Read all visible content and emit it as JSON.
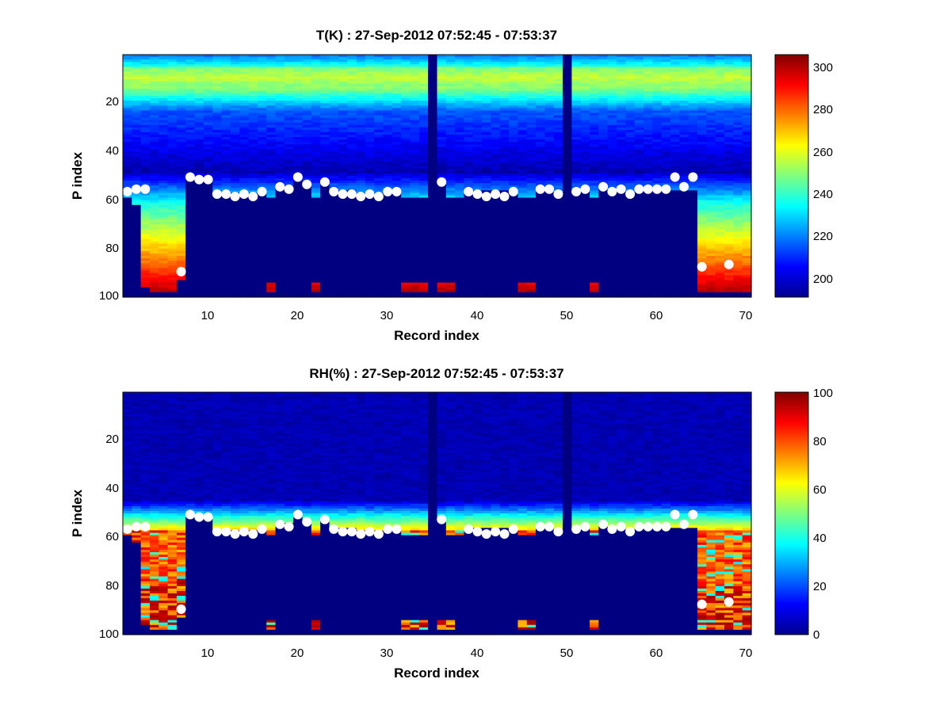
{
  "figure": {
    "background": "#ffffff"
  },
  "chart_data": [
    {
      "type": "heatmap",
      "title": "T(K) : 27-Sep-2012 07:52:45 - 07:53:37",
      "xlabel": "Record index",
      "ylabel": "P index",
      "xlim": [
        1,
        70
      ],
      "ylim": [
        1,
        100
      ],
      "y_reversed": true,
      "xticks": [
        "10",
        "20",
        "30",
        "40",
        "50",
        "60",
        "70"
      ],
      "yticks": [
        "20",
        "40",
        "60",
        "80",
        "100"
      ],
      "colorbar": {
        "min": 190,
        "max": 305,
        "ticks": [
          "200",
          "220",
          "240",
          "260",
          "280",
          "300"
        ],
        "colormap": "jet"
      },
      "profile_bottom": [
        80,
        62,
        96,
        98,
        98,
        98,
        93,
        100,
        100,
        100,
        100,
        100,
        100,
        100,
        100,
        100,
        98,
        100,
        100,
        100,
        100,
        98,
        100,
        100,
        100,
        100,
        100,
        100,
        100,
        100,
        82,
        98,
        98,
        98,
        100,
        98,
        98,
        100,
        100,
        100,
        100,
        100,
        100,
        100,
        98,
        98,
        100,
        100,
        100,
        100,
        100,
        100,
        98,
        100,
        100,
        100,
        100,
        100,
        100,
        100,
        100,
        100,
        100,
        100,
        98,
        98,
        98,
        98,
        98,
        98
      ],
      "cutoff_start": [
        60,
        100,
        100,
        100,
        100,
        100,
        100,
        52,
        52,
        52,
        58,
        58,
        58,
        58,
        58,
        58,
        60,
        55,
        55,
        52,
        55,
        60,
        53,
        57,
        57,
        57,
        58,
        58,
        58,
        58,
        58,
        60,
        60,
        60,
        100,
        53,
        60,
        60,
        57,
        57,
        57,
        57,
        57,
        57,
        60,
        60,
        56,
        56,
        58,
        58,
        57,
        57,
        60,
        55,
        57,
        57,
        58,
        57,
        57,
        57,
        57,
        57,
        57,
        57,
        100,
        100,
        100,
        100,
        100,
        100
      ],
      "fill_end": [
        100,
        100,
        100,
        100,
        100,
        100,
        100,
        100,
        100,
        100,
        100,
        100,
        100,
        100,
        100,
        100,
        94,
        100,
        100,
        100,
        100,
        94,
        100,
        100,
        100,
        100,
        100,
        100,
        100,
        100,
        100,
        94,
        94,
        94,
        100,
        94,
        94,
        100,
        100,
        100,
        100,
        100,
        100,
        100,
        94,
        94,
        100,
        100,
        100,
        100,
        100,
        100,
        94,
        100,
        100,
        100,
        100,
        100,
        100,
        100,
        100,
        100,
        100,
        100,
        94,
        94,
        94,
        94,
        94,
        94
      ],
      "missing_columns": [
        35,
        50
      ],
      "markers": [
        {
          "x": 1,
          "y": 57
        },
        {
          "x": 2,
          "y": 56
        },
        {
          "x": 3,
          "y": 56
        },
        {
          "x": 7,
          "y": 90
        },
        {
          "x": 8,
          "y": 51
        },
        {
          "x": 9,
          "y": 52
        },
        {
          "x": 10,
          "y": 52
        },
        {
          "x": 11,
          "y": 58
        },
        {
          "x": 12,
          "y": 58
        },
        {
          "x": 13,
          "y": 59
        },
        {
          "x": 14,
          "y": 58
        },
        {
          "x": 15,
          "y": 59
        },
        {
          "x": 16,
          "y": 57
        },
        {
          "x": 18,
          "y": 55
        },
        {
          "x": 19,
          "y": 56
        },
        {
          "x": 20,
          "y": 51
        },
        {
          "x": 21,
          "y": 54
        },
        {
          "x": 23,
          "y": 53
        },
        {
          "x": 24,
          "y": 57
        },
        {
          "x": 25,
          "y": 58
        },
        {
          "x": 26,
          "y": 58
        },
        {
          "x": 27,
          "y": 59
        },
        {
          "x": 28,
          "y": 58
        },
        {
          "x": 29,
          "y": 59
        },
        {
          "x": 30,
          "y": 57
        },
        {
          "x": 31,
          "y": 57
        },
        {
          "x": 36,
          "y": 53
        },
        {
          "x": 39,
          "y": 57
        },
        {
          "x": 40,
          "y": 58
        },
        {
          "x": 41,
          "y": 59
        },
        {
          "x": 42,
          "y": 58
        },
        {
          "x": 43,
          "y": 59
        },
        {
          "x": 44,
          "y": 57
        },
        {
          "x": 47,
          "y": 56
        },
        {
          "x": 48,
          "y": 56
        },
        {
          "x": 49,
          "y": 58
        },
        {
          "x": 51,
          "y": 57
        },
        {
          "x": 52,
          "y": 56
        },
        {
          "x": 54,
          "y": 55
        },
        {
          "x": 55,
          "y": 57
        },
        {
          "x": 56,
          "y": 56
        },
        {
          "x": 57,
          "y": 58
        },
        {
          "x": 58,
          "y": 56
        },
        {
          "x": 59,
          "y": 56
        },
        {
          "x": 60,
          "y": 56
        },
        {
          "x": 61,
          "y": 56
        },
        {
          "x": 62,
          "y": 51
        },
        {
          "x": 63,
          "y": 55
        },
        {
          "x": 64,
          "y": 51
        },
        {
          "x": 65,
          "y": 88
        },
        {
          "x": 68,
          "y": 87
        }
      ]
    },
    {
      "type": "heatmap",
      "title": "RH(%) : 27-Sep-2012 07:52:45 - 07:53:37",
      "xlabel": "Record index",
      "ylabel": "P index",
      "xlim": [
        1,
        70
      ],
      "ylim": [
        1,
        100
      ],
      "y_reversed": true,
      "xticks": [
        "10",
        "20",
        "30",
        "40",
        "50",
        "60",
        "70"
      ],
      "yticks": [
        "20",
        "40",
        "60",
        "80",
        "100"
      ],
      "colorbar": {
        "min": 0,
        "max": 100,
        "ticks": [
          "0",
          "20",
          "40",
          "60",
          "80",
          "100"
        ],
        "colormap": "jet"
      },
      "profile_bottom": [
        80,
        62,
        96,
        98,
        98,
        98,
        93,
        100,
        100,
        100,
        100,
        100,
        100,
        100,
        100,
        100,
        98,
        100,
        100,
        100,
        100,
        98,
        100,
        100,
        100,
        100,
        100,
        100,
        100,
        100,
        82,
        98,
        98,
        98,
        100,
        98,
        98,
        100,
        100,
        100,
        100,
        100,
        100,
        100,
        98,
        98,
        100,
        100,
        100,
        100,
        100,
        100,
        98,
        100,
        100,
        100,
        100,
        100,
        100,
        100,
        100,
        100,
        100,
        100,
        98,
        98,
        98,
        98,
        98,
        98
      ],
      "cutoff_start": [
        60,
        100,
        100,
        100,
        100,
        100,
        100,
        52,
        52,
        52,
        58,
        58,
        58,
        58,
        58,
        58,
        60,
        55,
        55,
        52,
        55,
        60,
        53,
        57,
        57,
        57,
        58,
        58,
        58,
        58,
        58,
        60,
        60,
        60,
        100,
        53,
        60,
        60,
        57,
        57,
        57,
        57,
        57,
        57,
        60,
        60,
        56,
        56,
        58,
        58,
        57,
        57,
        60,
        55,
        57,
        57,
        58,
        57,
        57,
        57,
        57,
        57,
        57,
        57,
        100,
        100,
        100,
        100,
        100,
        100
      ],
      "fill_end": [
        100,
        100,
        100,
        100,
        100,
        100,
        100,
        100,
        100,
        100,
        100,
        100,
        100,
        100,
        100,
        100,
        94,
        100,
        100,
        100,
        100,
        94,
        100,
        100,
        100,
        100,
        100,
        100,
        100,
        100,
        100,
        94,
        94,
        94,
        100,
        94,
        94,
        100,
        100,
        100,
        100,
        100,
        100,
        100,
        94,
        94,
        100,
        100,
        100,
        100,
        100,
        100,
        94,
        100,
        100,
        100,
        100,
        100,
        100,
        100,
        100,
        100,
        100,
        100,
        94,
        94,
        94,
        94,
        94,
        94
      ],
      "missing_columns": [
        35,
        50
      ],
      "markers": [
        {
          "x": 1,
          "y": 57
        },
        {
          "x": 2,
          "y": 56
        },
        {
          "x": 3,
          "y": 56
        },
        {
          "x": 7,
          "y": 90
        },
        {
          "x": 8,
          "y": 51
        },
        {
          "x": 9,
          "y": 52
        },
        {
          "x": 10,
          "y": 52
        },
        {
          "x": 11,
          "y": 58
        },
        {
          "x": 12,
          "y": 58
        },
        {
          "x": 13,
          "y": 59
        },
        {
          "x": 14,
          "y": 58
        },
        {
          "x": 15,
          "y": 59
        },
        {
          "x": 16,
          "y": 57
        },
        {
          "x": 18,
          "y": 55
        },
        {
          "x": 19,
          "y": 56
        },
        {
          "x": 20,
          "y": 51
        },
        {
          "x": 21,
          "y": 54
        },
        {
          "x": 23,
          "y": 53
        },
        {
          "x": 24,
          "y": 57
        },
        {
          "x": 25,
          "y": 58
        },
        {
          "x": 26,
          "y": 58
        },
        {
          "x": 27,
          "y": 59
        },
        {
          "x": 28,
          "y": 58
        },
        {
          "x": 29,
          "y": 59
        },
        {
          "x": 30,
          "y": 57
        },
        {
          "x": 31,
          "y": 57
        },
        {
          "x": 36,
          "y": 53
        },
        {
          "x": 39,
          "y": 57
        },
        {
          "x": 40,
          "y": 58
        },
        {
          "x": 41,
          "y": 59
        },
        {
          "x": 42,
          "y": 58
        },
        {
          "x": 43,
          "y": 59
        },
        {
          "x": 44,
          "y": 57
        },
        {
          "x": 47,
          "y": 56
        },
        {
          "x": 48,
          "y": 56
        },
        {
          "x": 49,
          "y": 58
        },
        {
          "x": 51,
          "y": 57
        },
        {
          "x": 52,
          "y": 56
        },
        {
          "x": 54,
          "y": 55
        },
        {
          "x": 55,
          "y": 57
        },
        {
          "x": 56,
          "y": 56
        },
        {
          "x": 57,
          "y": 58
        },
        {
          "x": 58,
          "y": 56
        },
        {
          "x": 59,
          "y": 56
        },
        {
          "x": 60,
          "y": 56
        },
        {
          "x": 61,
          "y": 56
        },
        {
          "x": 62,
          "y": 51
        },
        {
          "x": 63,
          "y": 55
        },
        {
          "x": 64,
          "y": 51
        },
        {
          "x": 65,
          "y": 88
        },
        {
          "x": 68,
          "y": 87
        }
      ]
    }
  ]
}
